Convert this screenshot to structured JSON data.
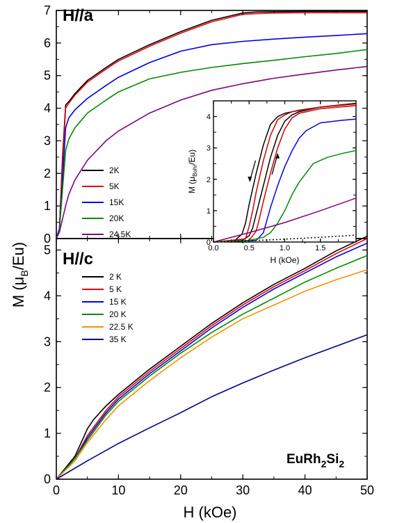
{
  "figure": {
    "ylabel_main": "M (",
    "ylabel_mu": "μ",
    "ylabel_sub": "B",
    "ylabel_end": "/Eu)",
    "xlabel": "H (kOe)",
    "compound": {
      "a": "EuRh",
      "b": "2",
      "c": "Si",
      "d": "2"
    }
  },
  "chart_data": [
    {
      "id": "top",
      "type": "line",
      "panel_label": "H//a",
      "xlim": [
        0,
        50
      ],
      "ylim": [
        0,
        7
      ],
      "yticks": [
        "0",
        "1",
        "2",
        "3",
        "4",
        "5",
        "6",
        "7"
      ],
      "legend_position": "left-middle",
      "series": [
        {
          "name": "2K",
          "color": "#000000",
          "x": [
            0,
            0.5,
            1,
            1.5,
            2,
            3,
            5,
            8,
            10,
            15,
            20,
            25,
            30,
            32,
            35,
            40,
            45,
            50
          ],
          "y": [
            0,
            0.3,
            2.5,
            4.1,
            4.2,
            4.45,
            4.85,
            5.25,
            5.5,
            5.95,
            6.35,
            6.7,
            6.92,
            6.95,
            6.96,
            6.97,
            6.97,
            6.97
          ]
        },
        {
          "name": "5K",
          "color": "#e8000b",
          "x": [
            0,
            0.5,
            1,
            1.5,
            2,
            3,
            5,
            8,
            10,
            15,
            20,
            25,
            30,
            32,
            35,
            40,
            45,
            50
          ],
          "y": [
            0,
            0.3,
            2.3,
            4.0,
            4.15,
            4.4,
            4.8,
            5.2,
            5.45,
            5.9,
            6.3,
            6.65,
            6.88,
            6.9,
            6.92,
            6.93,
            6.93,
            6.93
          ]
        },
        {
          "name": "15K",
          "color": "#0000e6",
          "x": [
            0,
            0.5,
            1,
            1.5,
            2,
            3,
            5,
            8,
            10,
            15,
            20,
            25,
            30,
            35,
            40,
            45,
            50
          ],
          "y": [
            0,
            0.3,
            1.8,
            3.4,
            3.7,
            3.95,
            4.3,
            4.7,
            4.95,
            5.4,
            5.75,
            5.95,
            6.05,
            6.12,
            6.18,
            6.23,
            6.29
          ]
        },
        {
          "name": "20K",
          "color": "#008a00",
          "x": [
            0,
            0.5,
            1,
            1.5,
            2,
            3,
            5,
            8,
            10,
            15,
            20,
            25,
            30,
            35,
            40,
            45,
            50
          ],
          "y": [
            0,
            0.25,
            1.5,
            2.7,
            3.05,
            3.4,
            3.85,
            4.25,
            4.5,
            4.9,
            5.1,
            5.25,
            5.37,
            5.47,
            5.58,
            5.68,
            5.8
          ]
        },
        {
          "name": "24.5K",
          "color": "#800080",
          "x": [
            0,
            0.5,
            1,
            1.5,
            2,
            3,
            5,
            8,
            10,
            15,
            20,
            25,
            30,
            35,
            40,
            45,
            50
          ],
          "y": [
            0,
            0.2,
            0.6,
            1.0,
            1.35,
            1.8,
            2.4,
            3.0,
            3.3,
            3.85,
            4.25,
            4.55,
            4.75,
            4.92,
            5.05,
            5.17,
            5.28
          ]
        }
      ]
    },
    {
      "id": "inset",
      "type": "line",
      "xlabel": "H (kOe)",
      "ylabel_main": "M (",
      "ylabel_mu": "μ",
      "ylabel_sub": "Bohr",
      "ylabel_end": "/Eu)",
      "xlim": [
        0,
        2
      ],
      "ylim": [
        0,
        4.5
      ],
      "xticks": [
        "0.0",
        "0.5",
        "1.0",
        "1.5"
      ],
      "yticks": [
        "0",
        "1",
        "2",
        "3",
        "4"
      ],
      "series": [
        {
          "color": "#000000",
          "x": [
            0,
            0.3,
            0.4,
            0.45,
            0.5,
            0.6,
            0.7,
            0.8,
            0.9,
            1.0,
            1.2,
            1.5,
            2.0
          ],
          "y": [
            0,
            0.05,
            0.25,
            0.6,
            1.2,
            2.2,
            3.1,
            3.75,
            4.0,
            4.1,
            4.2,
            4.3,
            4.42
          ]
        },
        {
          "color": "#000000",
          "x": [
            0,
            0.4,
            0.5,
            0.55,
            0.6,
            0.7,
            0.8,
            0.9,
            1.0,
            1.1,
            1.2,
            1.5,
            2.0
          ],
          "y": [
            0,
            0.05,
            0.2,
            0.45,
            0.9,
            1.8,
            2.7,
            3.4,
            3.85,
            4.05,
            4.15,
            4.3,
            4.42
          ]
        },
        {
          "color": "#cc0000",
          "x": [
            0,
            0.45,
            0.5,
            0.55,
            0.6,
            0.7,
            0.8,
            0.9,
            1.0,
            1.1,
            1.5,
            2.0
          ],
          "y": [
            0,
            0.1,
            0.5,
            1.0,
            1.6,
            2.6,
            3.4,
            3.9,
            4.05,
            4.15,
            4.3,
            4.4
          ]
        },
        {
          "color": "#cc0000",
          "x": [
            0,
            0.5,
            0.6,
            0.65,
            0.7,
            0.8,
            0.9,
            1.0,
            1.1,
            1.2,
            1.5,
            2.0
          ],
          "y": [
            0,
            0.05,
            0.35,
            0.8,
            1.3,
            2.2,
            3.0,
            3.6,
            3.95,
            4.1,
            4.25,
            4.35
          ]
        },
        {
          "color": "#0000e6",
          "x": [
            0,
            0.6,
            0.7,
            0.8,
            0.9,
            1.0,
            1.1,
            1.2,
            1.3,
            1.5,
            1.8,
            2.0
          ],
          "y": [
            0,
            0.05,
            0.3,
            1.1,
            1.8,
            2.4,
            2.9,
            3.3,
            3.55,
            3.8,
            3.88,
            3.92
          ]
        },
        {
          "color": "#008a00",
          "x": [
            0,
            0.5,
            0.7,
            0.8,
            0.9,
            1.0,
            1.1,
            1.2,
            1.4,
            1.6,
            1.8,
            2.0
          ],
          "y": [
            0,
            0.05,
            0.15,
            0.3,
            0.6,
            1.0,
            1.5,
            1.9,
            2.5,
            2.7,
            2.82,
            2.92
          ]
        },
        {
          "color": "#800080",
          "x": [
            0,
            0.5,
            1.0,
            1.5,
            2.0
          ],
          "y": [
            0,
            0.3,
            0.62,
            1.0,
            1.4
          ]
        },
        {
          "color": "#000000",
          "dashed": true,
          "x": [
            0,
            0.5,
            1.0,
            1.5,
            2.0
          ],
          "y": [
            0,
            0.04,
            0.09,
            0.15,
            0.22
          ]
        }
      ],
      "arrows": [
        {
          "direction": "down",
          "x": 0.55,
          "y1": 2.2,
          "y2": 1.95
        },
        {
          "direction": "up",
          "x": 0.86,
          "y1": 2.55,
          "y2": 2.8
        }
      ]
    },
    {
      "id": "bottom",
      "type": "line",
      "panel_label": "H//c",
      "xlim": [
        0,
        50
      ],
      "ylim": [
        0,
        5.25
      ],
      "xticks": [
        "0",
        "10",
        "20",
        "30",
        "40",
        "50"
      ],
      "yticks": [
        "0",
        "1",
        "2",
        "3",
        "4",
        "5"
      ],
      "legend_position": "top-left",
      "series": [
        {
          "name": "2 K",
          "color": "#000000",
          "x": [
            0,
            3,
            4,
            5,
            6,
            8,
            10,
            15,
            20,
            25,
            30,
            35,
            40,
            45,
            50
          ],
          "y": [
            0,
            0.5,
            0.8,
            1.1,
            1.3,
            1.6,
            1.85,
            2.4,
            2.9,
            3.4,
            3.85,
            4.25,
            4.6,
            4.98,
            5.3
          ]
        },
        {
          "name": "5 K",
          "color": "#e8000b",
          "x": [
            0,
            3,
            5,
            8,
            10,
            15,
            20,
            25,
            30,
            35,
            40,
            45,
            50
          ],
          "y": [
            0,
            0.45,
            0.95,
            1.5,
            1.8,
            2.35,
            2.85,
            3.35,
            3.8,
            4.2,
            4.55,
            4.92,
            5.25
          ]
        },
        {
          "name": "15 K",
          "color": "#0000e6",
          "x": [
            0,
            3,
            5,
            8,
            10,
            15,
            20,
            25,
            30,
            35,
            40,
            45,
            50
          ],
          "y": [
            0,
            0.45,
            0.9,
            1.45,
            1.75,
            2.3,
            2.8,
            3.3,
            3.75,
            4.15,
            4.5,
            4.85,
            5.15
          ]
        },
        {
          "name": "20 K",
          "color": "#008a00",
          "x": [
            0,
            3,
            5,
            8,
            10,
            15,
            20,
            25,
            30,
            35,
            40,
            45,
            50
          ],
          "y": [
            0,
            0.45,
            0.85,
            1.4,
            1.7,
            2.25,
            2.75,
            3.2,
            3.6,
            3.95,
            4.3,
            4.6,
            4.88
          ]
        },
        {
          "name": "22.5 K",
          "color": "#ff8c00",
          "x": [
            0,
            3,
            5,
            8,
            10,
            15,
            20,
            25,
            30,
            35,
            40,
            45,
            50
          ],
          "y": [
            0,
            0.4,
            0.8,
            1.3,
            1.6,
            2.15,
            2.65,
            3.1,
            3.5,
            3.8,
            4.1,
            4.35,
            4.57
          ]
        },
        {
          "name": "35 K",
          "color": "#00008b",
          "x": [
            0,
            5,
            10,
            15,
            20,
            25,
            30,
            35,
            40,
            45,
            50
          ],
          "y": [
            0,
            0.4,
            0.78,
            1.12,
            1.45,
            1.8,
            2.1,
            2.38,
            2.65,
            2.9,
            3.15
          ]
        }
      ]
    }
  ]
}
